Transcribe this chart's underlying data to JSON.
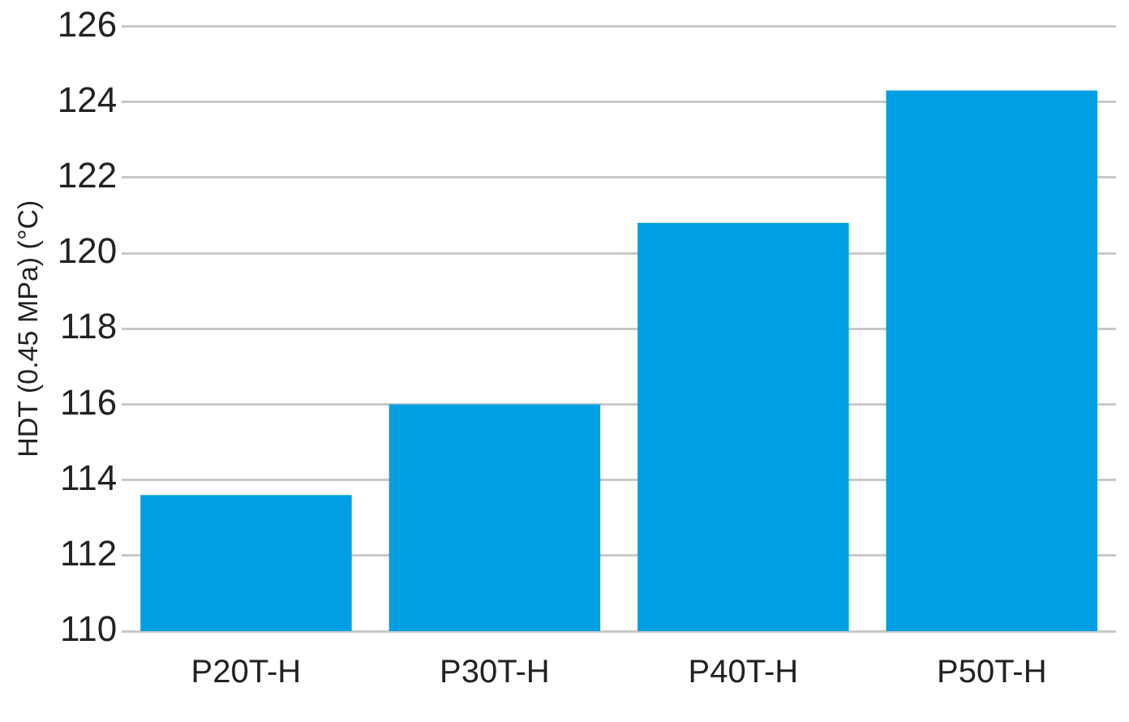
{
  "chart_data": {
    "type": "bar",
    "ylabel": "HDT (0.45 MPa) (°C)",
    "categories": [
      "P20T-H",
      "P30T-H",
      "P40T-H",
      "P50T-H"
    ],
    "values": [
      113.6,
      116.0,
      120.8,
      124.3
    ],
    "color": "#009fe3",
    "ylim": [
      110,
      126
    ],
    "yticks": [
      110,
      112,
      114,
      116,
      118,
      120,
      122,
      124,
      126
    ],
    "grid": "y",
    "legend": false
  }
}
